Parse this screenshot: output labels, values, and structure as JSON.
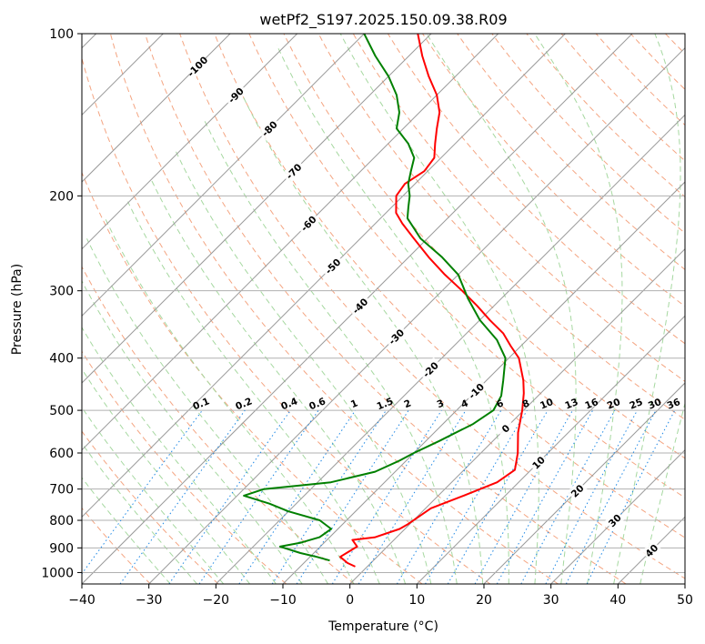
{
  "chart_data": {
    "type": "skew-t log-p",
    "title": "wetPf2_S197.2025.150.09.38.R09",
    "xlabel": "Temperature (°C)",
    "ylabel": "Pressure (hPa)",
    "xlim": [
      -40,
      50
    ],
    "ylim": [
      1050,
      100
    ],
    "y_scale": "log",
    "grid": true,
    "x_ticks": [
      "−40",
      "−30",
      "−20",
      "−10",
      "0",
      "10",
      "20",
      "30",
      "40",
      "50"
    ],
    "x_tick_values": [
      -40,
      -30,
      -20,
      -10,
      0,
      10,
      20,
      30,
      40,
      50
    ],
    "y_ticks": [
      "1000",
      "900",
      "800",
      "700",
      "600",
      "500",
      "400",
      "300",
      "200",
      "100"
    ],
    "y_tick_values": [
      1000,
      900,
      800,
      700,
      600,
      500,
      400,
      300,
      200,
      100
    ],
    "colors": {
      "temperature": "#ff0000",
      "dewpoint": "#008000",
      "isotherm": "#999999",
      "dry_adiabat": "#f4a582",
      "moist_adiabat": "#a6d8a0",
      "mixing_ratio": "#1e88e5",
      "isotherm_label": "#1f5f9f",
      "warm_label": "#d62728",
      "zero_label": "#808080",
      "extra_curve": "#d9c3a0"
    },
    "series": [
      {
        "points": [
          {
            "p": 975,
            "t": -1.8
          },
          {
            "p": 960,
            "t": -3.5
          },
          {
            "p": 935,
            "t": -5.5
          },
          {
            "p": 895,
            "t": -4.5
          },
          {
            "p": 870,
            "t": -6.2
          },
          {
            "p": 860,
            "t": -3.2
          },
          {
            "p": 830,
            "t": -0.8
          },
          {
            "p": 815,
            "t": -0.3
          },
          {
            "p": 760,
            "t": 0.8
          },
          {
            "p": 720,
            "t": 3.8
          },
          {
            "p": 680,
            "t": 6.8
          },
          {
            "p": 645,
            "t": 7.6
          },
          {
            "p": 600,
            "t": 5.5
          },
          {
            "p": 550,
            "t": 2.5
          },
          {
            "p": 500,
            "t": -0.2
          },
          {
            "p": 465,
            "t": -2.5
          },
          {
            "p": 440,
            "t": -4.5
          },
          {
            "p": 400,
            "t": -8.5
          },
          {
            "p": 380,
            "t": -11.5
          },
          {
            "p": 360,
            "t": -14.5
          },
          {
            "p": 340,
            "t": -18.5
          },
          {
            "p": 320,
            "t": -22.5
          },
          {
            "p": 300,
            "t": -27
          },
          {
            "p": 280,
            "t": -32
          },
          {
            "p": 260,
            "t": -37
          },
          {
            "p": 240,
            "t": -42
          },
          {
            "p": 225,
            "t": -46
          },
          {
            "p": 215,
            "t": -48.5
          },
          {
            "p": 200,
            "t": -51
          },
          {
            "p": 190,
            "t": -51.5
          },
          {
            "p": 180,
            "t": -50.5
          },
          {
            "p": 170,
            "t": -51
          },
          {
            "p": 160,
            "t": -53
          },
          {
            "p": 150,
            "t": -55
          },
          {
            "p": 140,
            "t": -57
          },
          {
            "p": 130,
            "t": -60
          },
          {
            "p": 120,
            "t": -64
          },
          {
            "p": 110,
            "t": -68
          },
          {
            "p": 100,
            "t": -72
          }
        ]
      },
      {
        "points": [
          {
            "p": 950,
            "t": -6.5
          },
          {
            "p": 935,
            "t": -9
          },
          {
            "p": 920,
            "t": -12
          },
          {
            "p": 895,
            "t": -16
          },
          {
            "p": 880,
            "t": -13.5
          },
          {
            "p": 860,
            "t": -11.5
          },
          {
            "p": 830,
            "t": -11
          },
          {
            "p": 800,
            "t": -14
          },
          {
            "p": 770,
            "t": -20
          },
          {
            "p": 745,
            "t": -24
          },
          {
            "p": 720,
            "t": -29
          },
          {
            "p": 700,
            "t": -27
          },
          {
            "p": 680,
            "t": -18
          },
          {
            "p": 650,
            "t": -13
          },
          {
            "p": 620,
            "t": -11
          },
          {
            "p": 600,
            "t": -10
          },
          {
            "p": 570,
            "t": -8
          },
          {
            "p": 530,
            "t": -5.5
          },
          {
            "p": 500,
            "t": -4.5
          },
          {
            "p": 470,
            "t": -5.5
          },
          {
            "p": 440,
            "t": -7.5
          },
          {
            "p": 400,
            "t": -10.5
          },
          {
            "p": 370,
            "t": -14.5
          },
          {
            "p": 340,
            "t": -20
          },
          {
            "p": 310,
            "t": -25
          },
          {
            "p": 280,
            "t": -30
          },
          {
            "p": 260,
            "t": -35
          },
          {
            "p": 240,
            "t": -41
          },
          {
            "p": 220,
            "t": -46
          },
          {
            "p": 210,
            "t": -47.5
          },
          {
            "p": 200,
            "t": -49
          },
          {
            "p": 190,
            "t": -51
          },
          {
            "p": 180,
            "t": -52.5
          },
          {
            "p": 170,
            "t": -54
          },
          {
            "p": 160,
            "t": -57
          },
          {
            "p": 150,
            "t": -61
          },
          {
            "p": 140,
            "t": -63
          },
          {
            "p": 130,
            "t": -66
          },
          {
            "p": 120,
            "t": -70
          },
          {
            "p": 110,
            "t": -75
          },
          {
            "p": 100,
            "t": -80
          }
        ]
      }
    ],
    "isotherm_labels": [
      {
        "text": "-100",
        "t": -100
      },
      {
        "text": "-90",
        "t": -90
      },
      {
        "text": "-80",
        "t": -80
      },
      {
        "text": "-70",
        "t": -70
      },
      {
        "text": "-60",
        "t": -60
      },
      {
        "text": "-50",
        "t": -50
      },
      {
        "text": "-40",
        "t": -40
      },
      {
        "text": "-30",
        "t": -30
      },
      {
        "text": "-20",
        "t": -20
      },
      {
        "text": "-10",
        "t": -10
      }
    ],
    "warm_isotherm_labels": [
      {
        "text": "0",
        "t": 0
      },
      {
        "text": "10",
        "t": 10
      },
      {
        "text": "20",
        "t": 20
      },
      {
        "text": "30",
        "t": 30
      },
      {
        "text": "40",
        "t": 40
      }
    ],
    "mixing_ratio_labels": [
      {
        "text": "0.1",
        "w": 0.1
      },
      {
        "text": "0.2",
        "w": 0.2
      },
      {
        "text": "0.4",
        "w": 0.4
      },
      {
        "text": "0.6",
        "w": 0.6
      },
      {
        "text": "1",
        "w": 1
      },
      {
        "text": "1.5",
        "w": 1.5
      },
      {
        "text": "2",
        "w": 2
      },
      {
        "text": "3",
        "w": 3
      },
      {
        "text": "4",
        "w": 4
      },
      {
        "text": "6",
        "w": 6
      },
      {
        "text": "8",
        "w": 8
      },
      {
        "text": "10",
        "w": 10
      },
      {
        "text": "13",
        "w": 13
      },
      {
        "text": "16",
        "w": 16
      },
      {
        "text": "20",
        "w": 20
      },
      {
        "text": "25",
        "w": 25
      },
      {
        "text": "30",
        "w": 30
      },
      {
        "text": "36",
        "w": 36
      }
    ]
  }
}
